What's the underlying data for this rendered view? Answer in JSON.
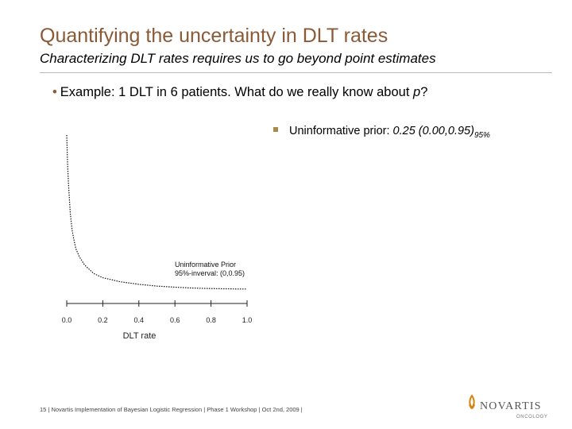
{
  "slide": {
    "title": "Quantifying the uncertainty in DLT rates",
    "subtitle": "Characterizing DLT rates requires us to go beyond point estimates"
  },
  "bullets": {
    "example": "Example: 1 DLT in 6 patients. What do we really know about",
    "example_var": "p",
    "example_q": "?",
    "prior_label": "Uninformative prior: ",
    "prior_value": "0.25 (0.00,0.95)",
    "prior_sub": "95%"
  },
  "chart_data": {
    "type": "line",
    "series": [
      {
        "name": "Uninformative Prior",
        "x": [
          0.0,
          0.005,
          0.01,
          0.02,
          0.03,
          0.04,
          0.05,
          0.07,
          0.1,
          0.15,
          0.2,
          0.3,
          0.4,
          0.5,
          0.6,
          0.7,
          0.8,
          0.9,
          0.95,
          1.0
        ],
        "y": [
          1.0,
          0.82,
          0.7,
          0.53,
          0.43,
          0.37,
          0.32,
          0.27,
          0.22,
          0.17,
          0.145,
          0.12,
          0.105,
          0.095,
          0.088,
          0.083,
          0.08,
          0.078,
          0.077,
          0.077
        ]
      }
    ],
    "annotation": [
      "Uninformative Prior",
      "95%-inverval: (0,0.95)"
    ],
    "xticks": [
      "0.0",
      "0.2",
      "0.4",
      "0.6",
      "0.8",
      "1.0"
    ],
    "xlim": [
      0,
      1
    ],
    "ylim": [
      0,
      1
    ],
    "xlabel": "DLT rate",
    "ylabel": ""
  },
  "footer": {
    "text": "15 | Novartis Implementation of Bayesian Logistic Regression | Phase 1 Workshop | Oct 2nd, 2009 |"
  },
  "logo": {
    "brand": "NOVARTIS",
    "division": "ONCOLOGY",
    "accent": "#d4820a"
  }
}
